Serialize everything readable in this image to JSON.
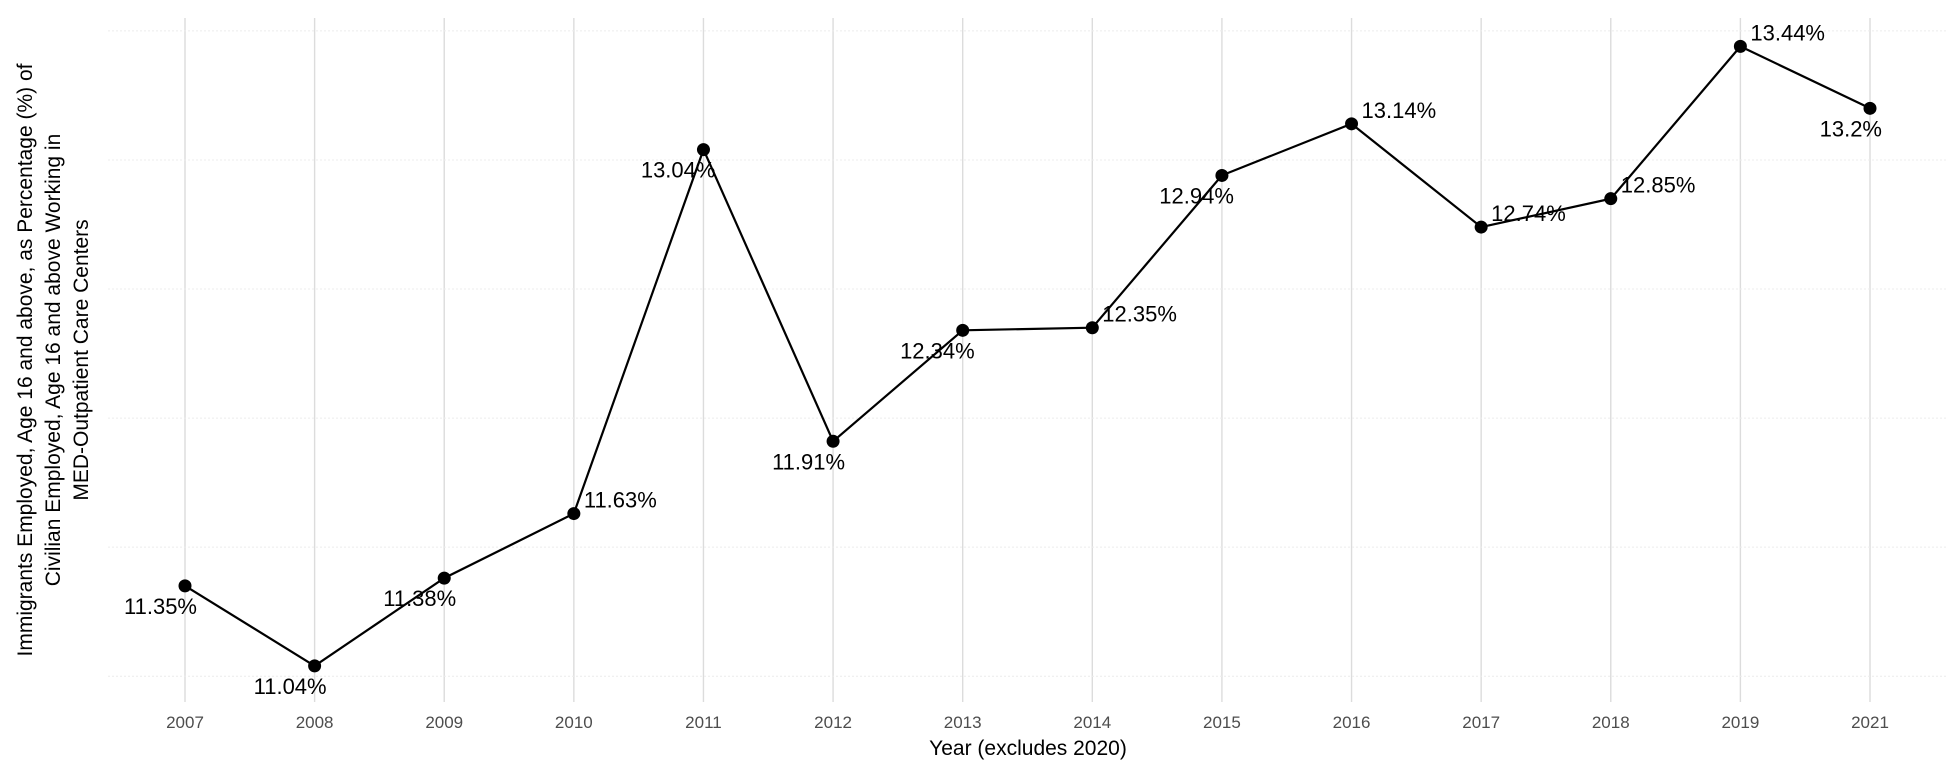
{
  "chart_data": {
    "type": "line",
    "title": "",
    "xlabel": "Year (excludes 2020)",
    "ylabel_lines": [
      "Immigrants Employed, Age 16 and above, as Percentage (%) of",
      "Civilian Employed, Age 16 and above Working in",
      "MED-Outpatient Care Centers"
    ],
    "categories": [
      "2007",
      "2008",
      "2009",
      "2010",
      "2011",
      "2012",
      "2013",
      "2014",
      "2015",
      "2016",
      "2017",
      "2018",
      "2019",
      "2021"
    ],
    "values": [
      11.35,
      11.04,
      11.38,
      11.63,
      13.04,
      11.91,
      12.34,
      12.35,
      12.94,
      13.14,
      12.74,
      12.85,
      13.44,
      13.2
    ],
    "data_labels": [
      "11.35%",
      "11.04%",
      "11.38%",
      "11.63%",
      "13.04%",
      "11.91%",
      "12.34%",
      "12.35%",
      "12.94%",
      "13.14%",
      "12.74%",
      "12.85%",
      "13.44%",
      "13.2%"
    ],
    "label_positions": [
      "below-left",
      "below-left",
      "below-left",
      "right",
      "below-left",
      "below-left",
      "below-left",
      "right",
      "below-left",
      "right",
      "right",
      "right",
      "right",
      "below-left"
    ],
    "ylim": [
      10.9,
      13.55
    ],
    "y_gridlines": [
      11.0,
      11.5,
      12.0,
      12.5,
      13.0,
      13.5
    ],
    "y_tick_labels_shown": false,
    "grid": true,
    "legend": "none",
    "line_color": "#000000",
    "point_color": "#000000"
  }
}
